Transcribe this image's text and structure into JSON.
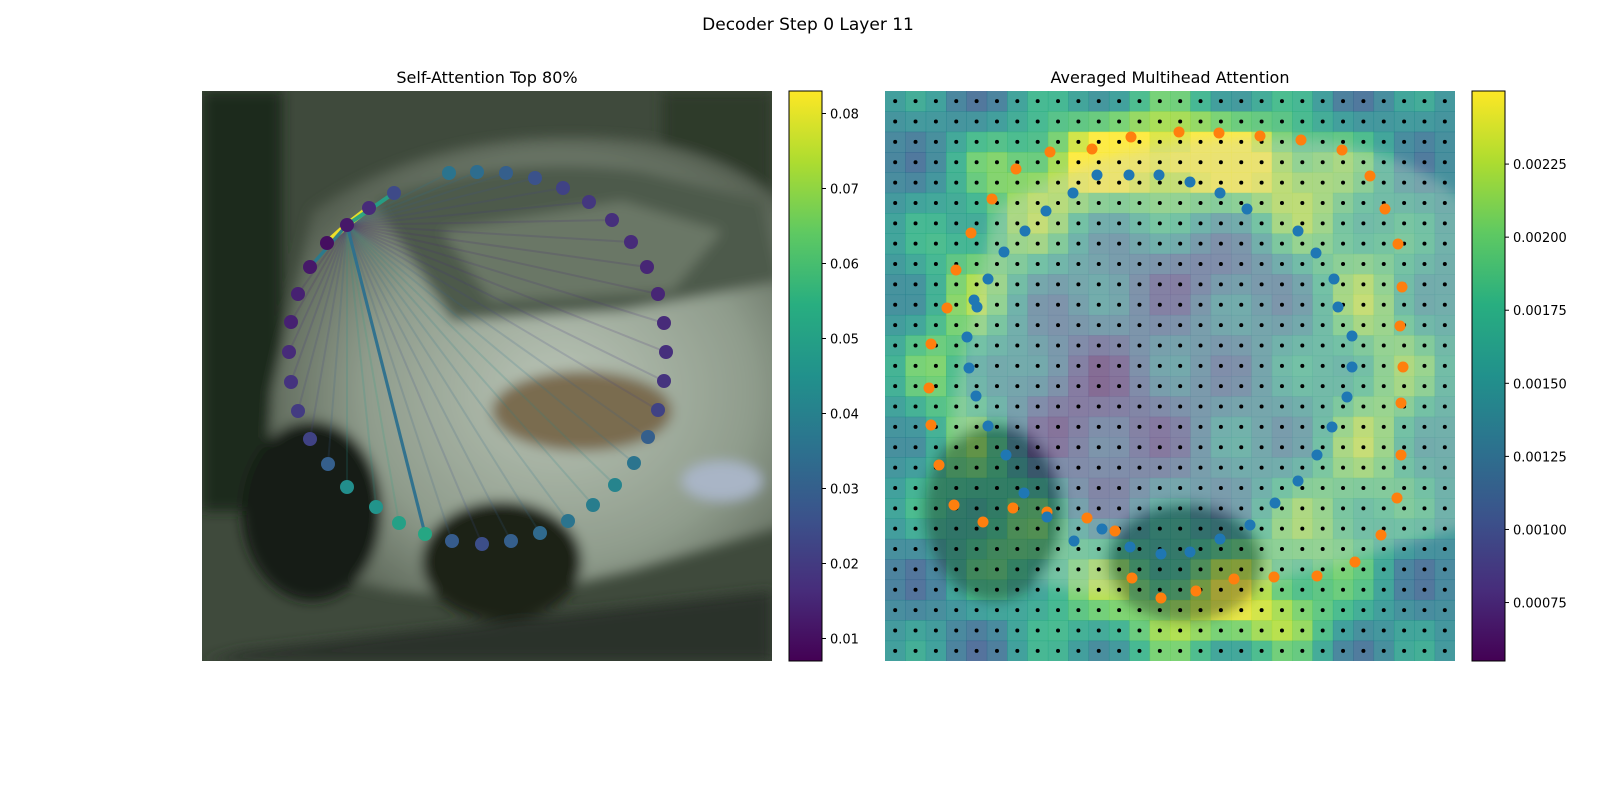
{
  "figure": {
    "suptitle": "Decoder Step 0 Layer 11"
  },
  "chart_data": [
    {
      "type": "scatter",
      "title": "Self-Attention Top 80%",
      "background": "blurred photo of a silver car",
      "colormap": "viridis",
      "colorbar": {
        "range": [
          0.007,
          0.083
        ],
        "ticks": [
          "0.01",
          "0.02",
          "0.03",
          "0.04",
          "0.05",
          "0.06",
          "0.07",
          "0.08"
        ]
      },
      "query_point_index": 36,
      "points": [
        {
          "x": 247,
          "y": 82,
          "v": 0.036
        },
        {
          "x": 275,
          "y": 81,
          "v": 0.034
        },
        {
          "x": 304,
          "y": 82,
          "v": 0.03
        },
        {
          "x": 333,
          "y": 87,
          "v": 0.026
        },
        {
          "x": 361,
          "y": 97,
          "v": 0.022
        },
        {
          "x": 387,
          "y": 111,
          "v": 0.019
        },
        {
          "x": 410,
          "y": 129,
          "v": 0.017
        },
        {
          "x": 429,
          "y": 151,
          "v": 0.016
        },
        {
          "x": 445,
          "y": 176,
          "v": 0.015
        },
        {
          "x": 456,
          "y": 203,
          "v": 0.015
        },
        {
          "x": 462,
          "y": 232,
          "v": 0.016
        },
        {
          "x": 464,
          "y": 261,
          "v": 0.017
        },
        {
          "x": 462,
          "y": 290,
          "v": 0.018
        },
        {
          "x": 456,
          "y": 319,
          "v": 0.022
        },
        {
          "x": 446,
          "y": 346,
          "v": 0.03
        },
        {
          "x": 432,
          "y": 372,
          "v": 0.036
        },
        {
          "x": 413,
          "y": 394,
          "v": 0.041
        },
        {
          "x": 391,
          "y": 414,
          "v": 0.039
        },
        {
          "x": 366,
          "y": 430,
          "v": 0.036
        },
        {
          "x": 338,
          "y": 442,
          "v": 0.033
        },
        {
          "x": 309,
          "y": 450,
          "v": 0.03
        },
        {
          "x": 280,
          "y": 453,
          "v": 0.025
        },
        {
          "x": 250,
          "y": 450,
          "v": 0.029
        },
        {
          "x": 223,
          "y": 443,
          "v": 0.052
        },
        {
          "x": 197,
          "y": 432,
          "v": 0.05
        },
        {
          "x": 174,
          "y": 416,
          "v": 0.046
        },
        {
          "x": 145,
          "y": 396,
          "v": 0.044
        },
        {
          "x": 126,
          "y": 373,
          "v": 0.03
        },
        {
          "x": 108,
          "y": 348,
          "v": 0.022
        },
        {
          "x": 96,
          "y": 320,
          "v": 0.02
        },
        {
          "x": 89,
          "y": 291,
          "v": 0.018
        },
        {
          "x": 87,
          "y": 261,
          "v": 0.016
        },
        {
          "x": 89,
          "y": 231,
          "v": 0.014
        },
        {
          "x": 96,
          "y": 203,
          "v": 0.014
        },
        {
          "x": 108,
          "y": 176,
          "v": 0.012
        },
        {
          "x": 125,
          "y": 152,
          "v": 0.01
        },
        {
          "x": 145,
          "y": 134,
          "v": 0.012
        },
        {
          "x": 167,
          "y": 117,
          "v": 0.016
        },
        {
          "x": 192,
          "y": 102,
          "v": 0.024
        }
      ],
      "edges": [
        {
          "to": 35,
          "w": 0.082
        },
        {
          "to": 36,
          "w": 0.082
        },
        {
          "to": 37,
          "w": 0.081
        },
        {
          "to": 38,
          "w": 0.05
        },
        {
          "to": 34,
          "w": 0.038
        },
        {
          "to": 23,
          "w": 0.035
        }
      ]
    },
    {
      "type": "heatmap",
      "title": "Averaged Multihead Attention",
      "colormap": "viridis",
      "colorbar": {
        "range": [
          0.00055,
          0.0025
        ],
        "ticks": [
          "0.00075",
          "0.00100",
          "0.00125",
          "0.00150",
          "0.00175",
          "0.00200",
          "0.00225"
        ]
      },
      "grid_size": 28,
      "orange_points": [
        {
          "x": 246,
          "y": 46
        },
        {
          "x": 294,
          "y": 41
        },
        {
          "x": 334,
          "y": 42
        },
        {
          "x": 375,
          "y": 45
        },
        {
          "x": 416,
          "y": 49
        },
        {
          "x": 457,
          "y": 59
        },
        {
          "x": 485,
          "y": 85
        },
        {
          "x": 500,
          "y": 118
        },
        {
          "x": 513,
          "y": 153
        },
        {
          "x": 517,
          "y": 196
        },
        {
          "x": 515,
          "y": 235
        },
        {
          "x": 518,
          "y": 276
        },
        {
          "x": 516,
          "y": 312
        },
        {
          "x": 516,
          "y": 364
        },
        {
          "x": 512,
          "y": 407
        },
        {
          "x": 496,
          "y": 444
        },
        {
          "x": 470,
          "y": 471
        },
        {
          "x": 432,
          "y": 485
        },
        {
          "x": 389,
          "y": 486
        },
        {
          "x": 349,
          "y": 488
        },
        {
          "x": 311,
          "y": 500
        },
        {
          "x": 276,
          "y": 507
        },
        {
          "x": 247,
          "y": 487
        },
        {
          "x": 230,
          "y": 440
        },
        {
          "x": 202,
          "y": 427
        },
        {
          "x": 162,
          "y": 421
        },
        {
          "x": 128,
          "y": 417
        },
        {
          "x": 98,
          "y": 431
        },
        {
          "x": 69,
          "y": 414
        },
        {
          "x": 54,
          "y": 374
        },
        {
          "x": 46,
          "y": 334
        },
        {
          "x": 44,
          "y": 297
        },
        {
          "x": 46,
          "y": 253
        },
        {
          "x": 62,
          "y": 217
        },
        {
          "x": 71,
          "y": 179
        },
        {
          "x": 86,
          "y": 142
        },
        {
          "x": 107,
          "y": 108
        },
        {
          "x": 131,
          "y": 78
        },
        {
          "x": 165,
          "y": 61
        },
        {
          "x": 207,
          "y": 58
        }
      ],
      "blue_points": [
        {
          "x": 188,
          "y": 102
        },
        {
          "x": 212,
          "y": 84
        },
        {
          "x": 244,
          "y": 84
        },
        {
          "x": 274,
          "y": 84
        },
        {
          "x": 305,
          "y": 91
        },
        {
          "x": 335,
          "y": 102
        },
        {
          "x": 362,
          "y": 118
        },
        {
          "x": 413,
          "y": 140
        },
        {
          "x": 431,
          "y": 162
        },
        {
          "x": 449,
          "y": 188
        },
        {
          "x": 453,
          "y": 216
        },
        {
          "x": 467,
          "y": 245
        },
        {
          "x": 467,
          "y": 276
        },
        {
          "x": 462,
          "y": 306
        },
        {
          "x": 447,
          "y": 336
        },
        {
          "x": 432,
          "y": 364
        },
        {
          "x": 413,
          "y": 390
        },
        {
          "x": 390,
          "y": 412
        },
        {
          "x": 365,
          "y": 434
        },
        {
          "x": 335,
          "y": 448
        },
        {
          "x": 305,
          "y": 461
        },
        {
          "x": 276,
          "y": 463
        },
        {
          "x": 245,
          "y": 456
        },
        {
          "x": 217,
          "y": 438
        },
        {
          "x": 189,
          "y": 450
        },
        {
          "x": 162,
          "y": 426
        },
        {
          "x": 139,
          "y": 402
        },
        {
          "x": 121,
          "y": 364
        },
        {
          "x": 103,
          "y": 335
        },
        {
          "x": 91,
          "y": 305
        },
        {
          "x": 84,
          "y": 277
        },
        {
          "x": 82,
          "y": 246
        },
        {
          "x": 89,
          "y": 209
        },
        {
          "x": 103,
          "y": 188
        },
        {
          "x": 92,
          "y": 216
        },
        {
          "x": 119,
          "y": 161
        },
        {
          "x": 140,
          "y": 140
        },
        {
          "x": 161,
          "y": 120
        }
      ]
    }
  ]
}
